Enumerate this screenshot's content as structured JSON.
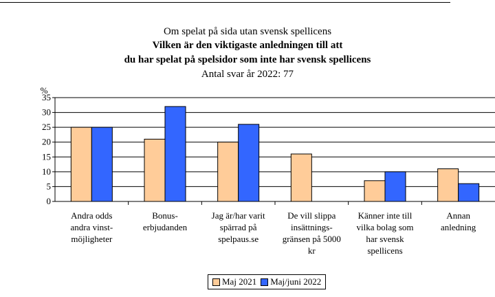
{
  "chart_data": {
    "type": "bar",
    "title_line1": "Om spelat på sida utan svensk spellicens",
    "title_line2": "Vilken är den viktigaste anledningen till att",
    "title_line3": "du har spelat på spelsidor som inte har svensk spellicens",
    "subtitle": "Antal svar år 2022: 77",
    "ylabel": "%",
    "ylim": [
      0,
      35
    ],
    "yticks": [
      0,
      5,
      10,
      15,
      20,
      25,
      30,
      35
    ],
    "grid": true,
    "legend_position": "bottom",
    "categories": [
      [
        "Andra odds",
        "andra vinst-",
        "möjligheter"
      ],
      [
        "Bonus-",
        "erbjudanden"
      ],
      [
        "Jag är/har varit",
        "spärrad på",
        "spelpaus.se"
      ],
      [
        "De vill slippa",
        "insättnings-",
        "gränsen på 5000",
        "kr"
      ],
      [
        "Känner inte till",
        "vilka bolag som",
        "har svensk",
        "spellicens"
      ],
      [
        "Annan",
        "anledning"
      ]
    ],
    "series": [
      {
        "name": "Maj 2021",
        "color": "#ffcc99",
        "values": [
          25,
          21,
          20,
          16,
          7,
          11
        ]
      },
      {
        "name": "Maj/juni 2022",
        "color": "#3366ff",
        "values": [
          25,
          32,
          26,
          0,
          10,
          6
        ]
      }
    ]
  }
}
